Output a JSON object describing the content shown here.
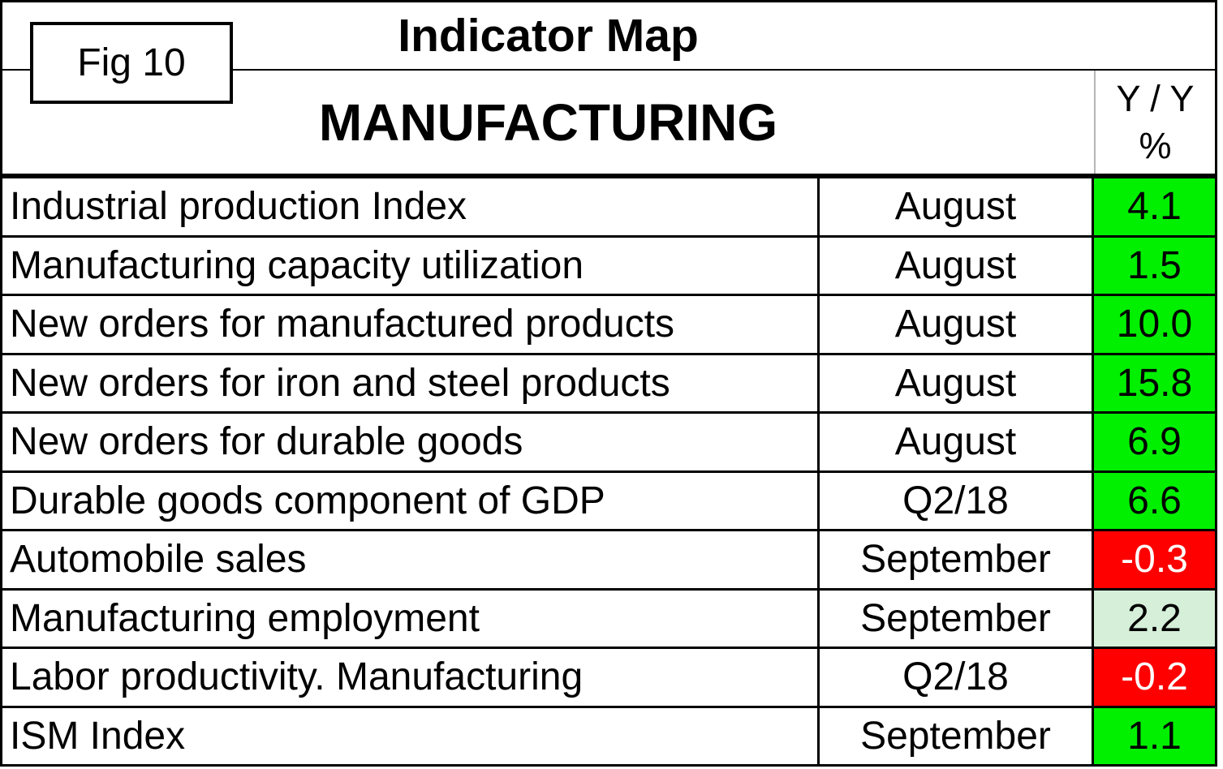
{
  "figure": {
    "fig_label": "Fig 10",
    "title": "Indicator Map",
    "section": "MANUFACTURING"
  },
  "columns": {
    "yoy_header_line1": "Y / Y",
    "yoy_header_line2": "%"
  },
  "colors": {
    "strong_positive": {
      "bg": "#00F000",
      "fg": "#000000"
    },
    "mild_positive": {
      "bg": "#D5EFD8",
      "fg": "#000000"
    },
    "negative": {
      "bg": "#FF0000",
      "fg": "#FFFFFF"
    },
    "border": "#000000",
    "header_divider": "#B5B5B5"
  },
  "chart_data": {
    "type": "table",
    "title": "Indicator Map",
    "section": "MANUFACTURING",
    "fig_label": "Fig 10",
    "value_column_header": "Y / Y %",
    "rows": [
      {
        "indicator": "Industrial production Index",
        "period": "August",
        "yoy_pct": "4.1",
        "status": "strong_positive"
      },
      {
        "indicator": "Manufacturing capacity utilization",
        "period": "August",
        "yoy_pct": "1.5",
        "status": "strong_positive"
      },
      {
        "indicator": "New orders for manufactured products",
        "period": "August",
        "yoy_pct": "10.0",
        "status": "strong_positive"
      },
      {
        "indicator": "New orders for iron and steel products",
        "period": "August",
        "yoy_pct": "15.8",
        "status": "strong_positive"
      },
      {
        "indicator": "New orders for durable goods",
        "period": "August",
        "yoy_pct": "6.9",
        "status": "strong_positive"
      },
      {
        "indicator": "Durable goods component of GDP",
        "period": "Q2/18",
        "yoy_pct": "6.6",
        "status": "strong_positive"
      },
      {
        "indicator": "Automobile sales",
        "period": "September",
        "yoy_pct": "-0.3",
        "status": "negative"
      },
      {
        "indicator": "Manufacturing employment",
        "period": "September",
        "yoy_pct": "2.2",
        "status": "mild_positive"
      },
      {
        "indicator": "Labor productivity. Manufacturing",
        "period": "Q2/18",
        "yoy_pct": "-0.2",
        "status": "negative"
      },
      {
        "indicator": "ISM Index",
        "period": "September",
        "yoy_pct": "1.1",
        "status": "strong_positive"
      }
    ]
  }
}
